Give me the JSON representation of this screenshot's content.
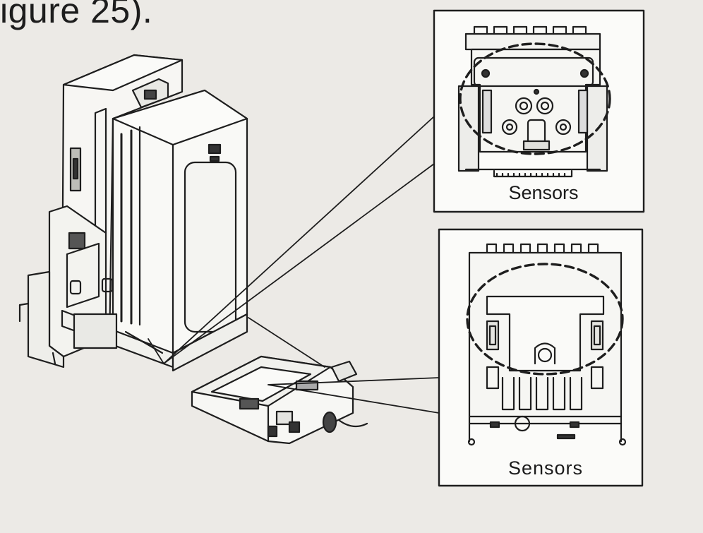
{
  "figure": {
    "caption_fragment": "igure 25).",
    "inset_a": {
      "label": "Sensors"
    },
    "inset_b": {
      "label": "Sensors"
    }
  }
}
